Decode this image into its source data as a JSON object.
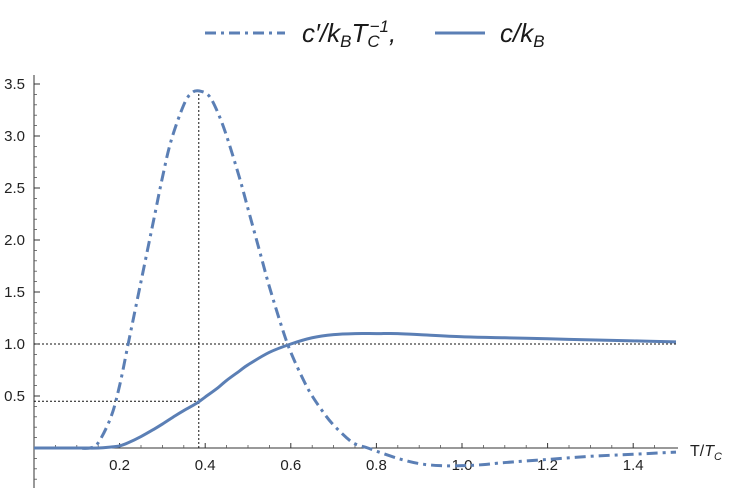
{
  "chart_data": {
    "type": "line",
    "xlabel": "T/T_C",
    "xlabel_parts": {
      "main": "T/",
      "italic": "T",
      "sub": "C"
    },
    "xlim": [
      0,
      1.5
    ],
    "ylim": [
      -0.3,
      3.6
    ],
    "xticks": [
      0.2,
      0.4,
      0.6,
      0.8,
      1.0,
      1.2,
      1.4
    ],
    "xtick_labels": [
      "0.2",
      "0.4",
      "0.6",
      "0.8",
      "1.0",
      "1.2",
      "1.4"
    ],
    "yticks": [
      0.5,
      1.0,
      1.5,
      2.0,
      2.5,
      3.0,
      3.5
    ],
    "ytick_labels": [
      "0.5",
      "1.0",
      "1.5",
      "2.0",
      "2.5",
      "3.0",
      "3.5"
    ],
    "legend_position": "top-center",
    "color": "#5b7fb5",
    "series": [
      {
        "name": "c′/k_B T_C^-1,",
        "style": "dashdot",
        "x": [
          0.0,
          0.05,
          0.1,
          0.13,
          0.15,
          0.18,
          0.2,
          0.22,
          0.25,
          0.28,
          0.3,
          0.32,
          0.35,
          0.37,
          0.39,
          0.41,
          0.43,
          0.45,
          0.48,
          0.5,
          0.53,
          0.55,
          0.58,
          0.6,
          0.63,
          0.65,
          0.68,
          0.7,
          0.73,
          0.75,
          0.78,
          0.8,
          0.85,
          0.9,
          0.95,
          1.0,
          1.05,
          1.1,
          1.2,
          1.3,
          1.4,
          1.5
        ],
        "y": [
          0.0,
          0.0,
          0.0,
          0.0,
          0.05,
          0.3,
          0.6,
          1.0,
          1.6,
          2.2,
          2.6,
          2.95,
          3.3,
          3.42,
          3.43,
          3.38,
          3.22,
          3.0,
          2.6,
          2.3,
          1.85,
          1.55,
          1.15,
          0.92,
          0.65,
          0.5,
          0.32,
          0.22,
          0.1,
          0.04,
          0.0,
          -0.03,
          -0.1,
          -0.15,
          -0.17,
          -0.17,
          -0.16,
          -0.14,
          -0.11,
          -0.08,
          -0.06,
          -0.04
        ]
      },
      {
        "name": "c/k_B",
        "style": "solid",
        "x": [
          0.0,
          0.1,
          0.15,
          0.18,
          0.2,
          0.22,
          0.25,
          0.28,
          0.3,
          0.33,
          0.35,
          0.38,
          0.4,
          0.43,
          0.45,
          0.48,
          0.5,
          0.55,
          0.6,
          0.65,
          0.7,
          0.75,
          0.8,
          0.85,
          0.9,
          1.0,
          1.1,
          1.2,
          1.3,
          1.4,
          1.5
        ],
        "y": [
          0.0,
          0.0,
          0.0,
          0.01,
          0.02,
          0.05,
          0.11,
          0.18,
          0.23,
          0.31,
          0.36,
          0.43,
          0.49,
          0.58,
          0.65,
          0.74,
          0.8,
          0.92,
          1.0,
          1.06,
          1.09,
          1.1,
          1.1,
          1.1,
          1.09,
          1.07,
          1.06,
          1.05,
          1.04,
          1.03,
          1.02
        ]
      }
    ],
    "reference_lines": [
      {
        "orientation": "vertical",
        "x": 0.385,
        "y_from": 0,
        "y_to": 3.43
      },
      {
        "orientation": "horizontal",
        "y": 1.0,
        "x_from": 0,
        "x_to": 1.5
      },
      {
        "orientation": "horizontal",
        "y": 0.45,
        "x_from": 0,
        "x_to": 0.385
      }
    ]
  },
  "legend": {
    "items": [
      {
        "main": "c′/k",
        "sub1": "B",
        "mid": "T",
        "sub2": "C",
        "sup": "−1",
        "tail": ","
      },
      {
        "main": "c/k",
        "sub1": "B"
      }
    ]
  }
}
